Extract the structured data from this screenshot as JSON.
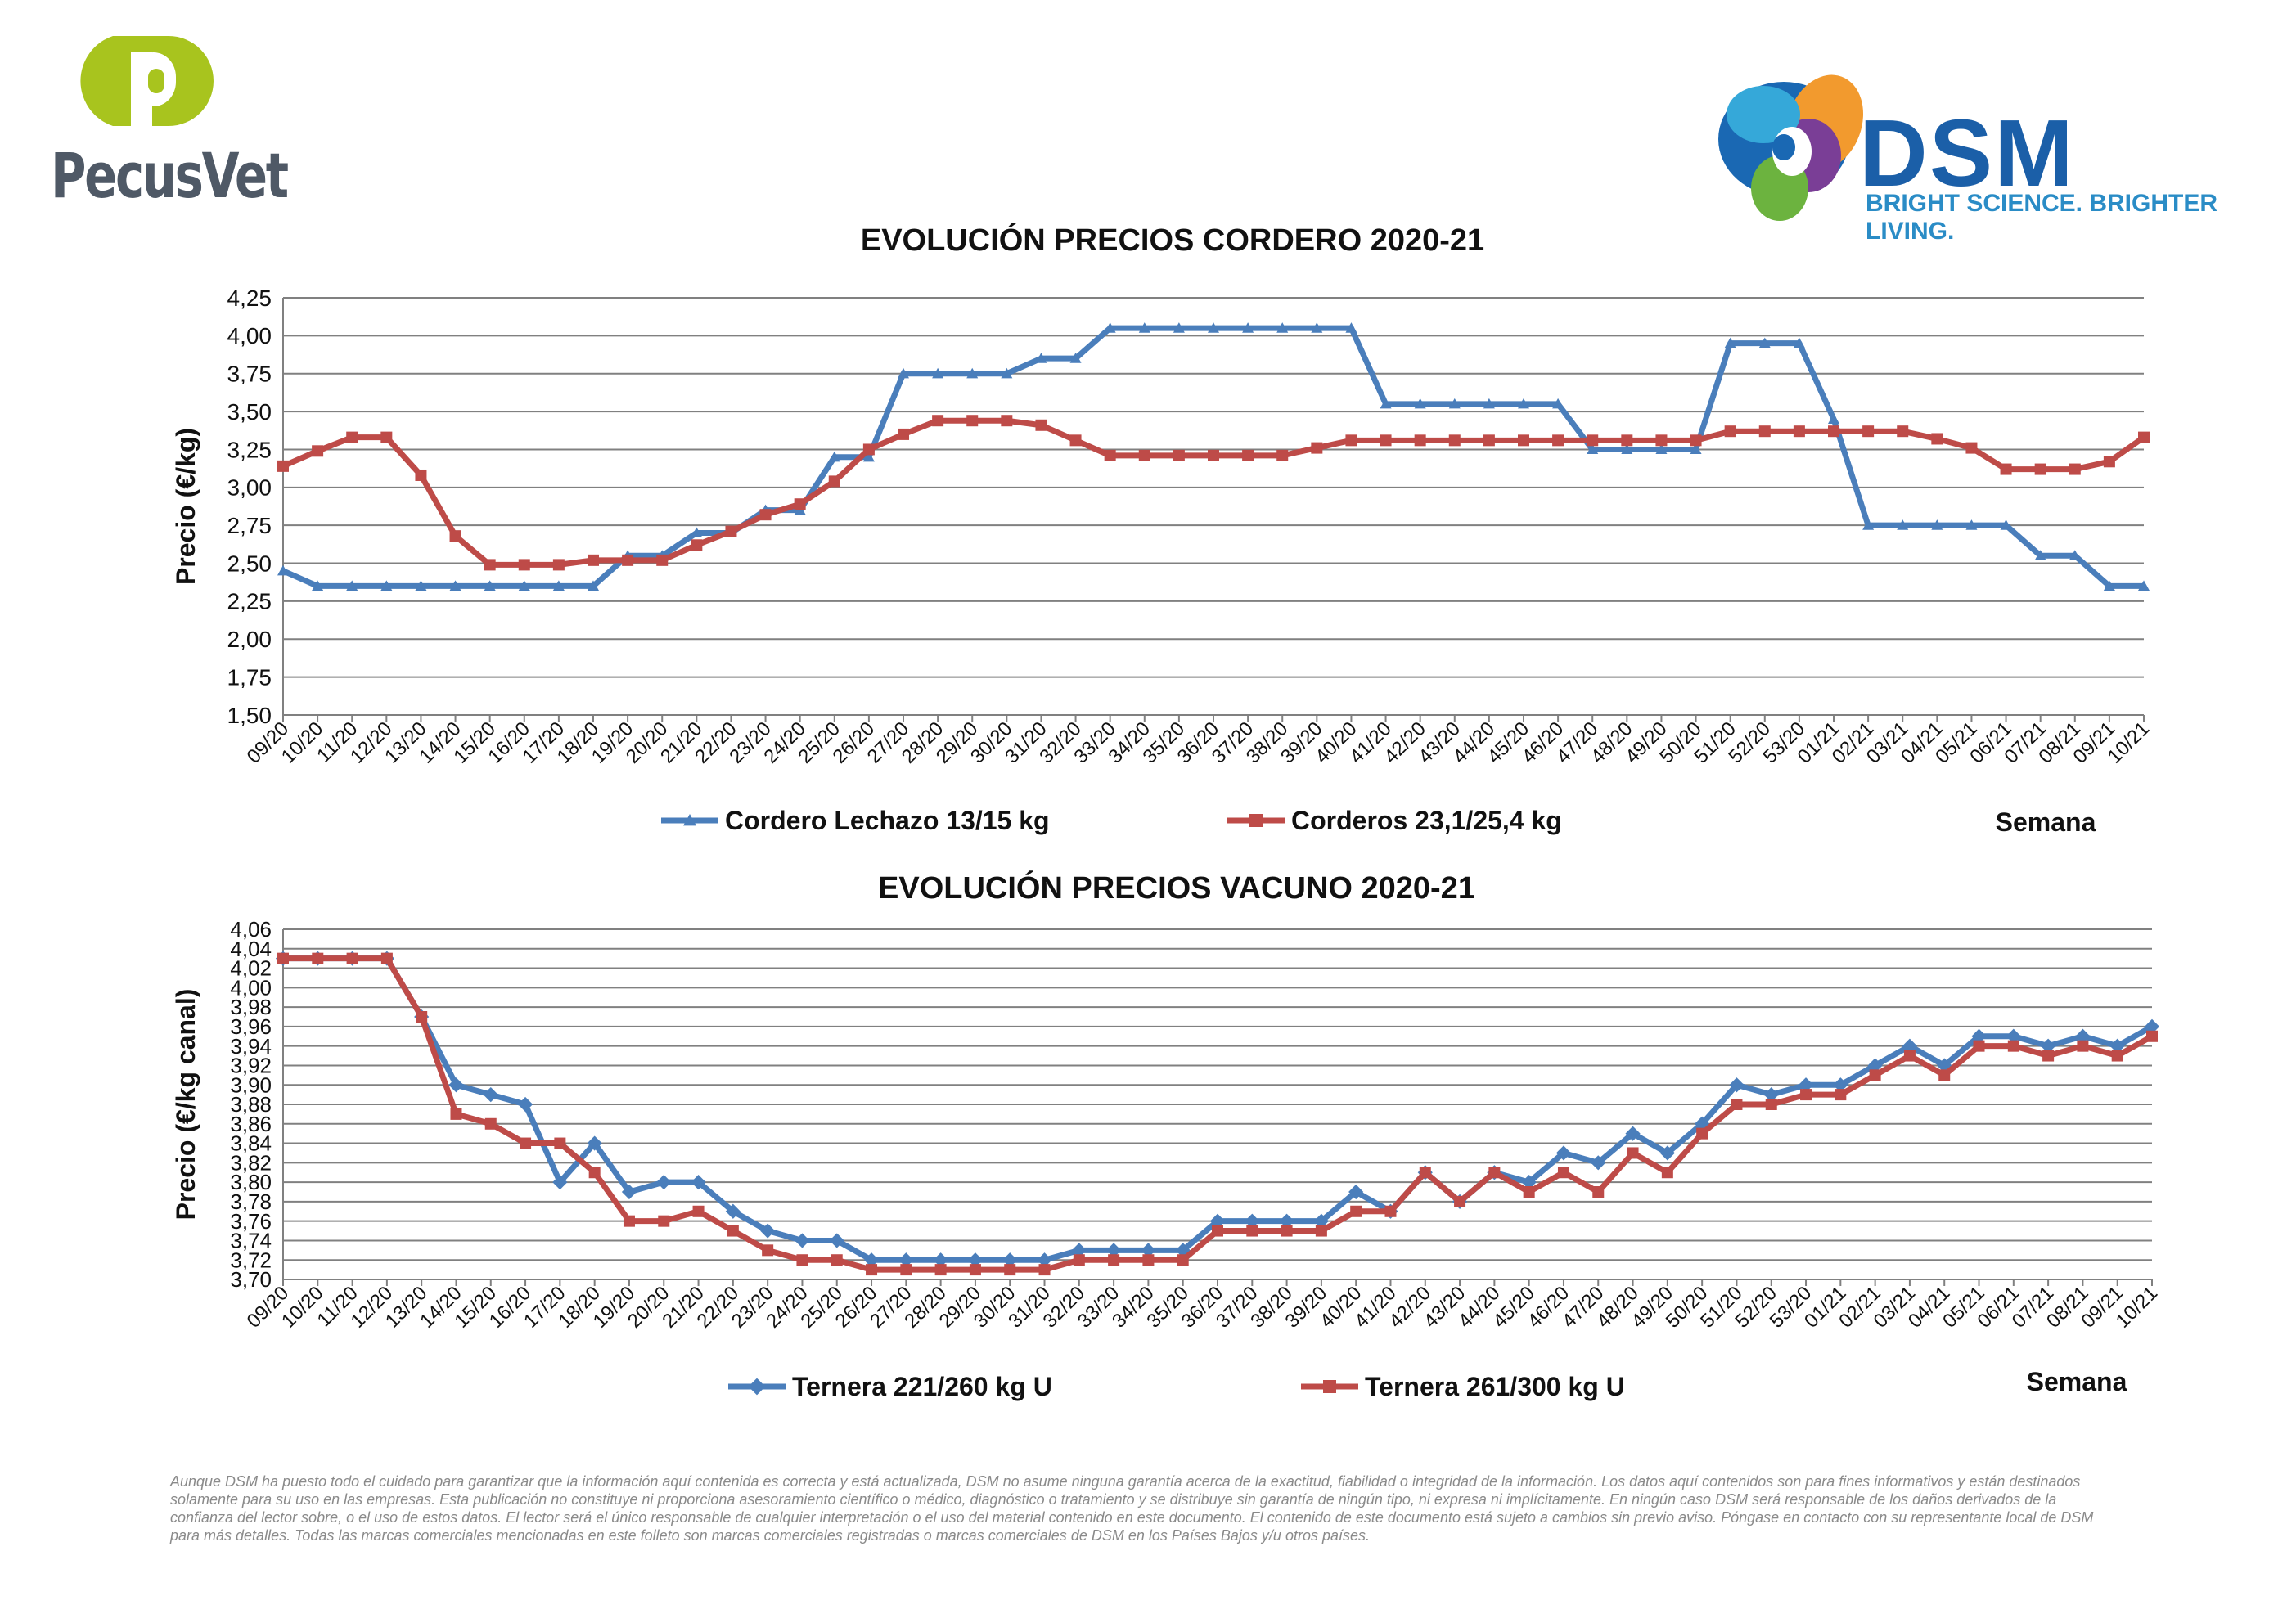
{
  "brand_left": {
    "name": "PecusVet",
    "logo_icon": "pecusvet-p-icon",
    "colors": {
      "green": "#a8c41e",
      "gray": "#4f5966"
    }
  },
  "brand_right": {
    "name": "DSM",
    "tagline": "BRIGHT SCIENCE. BRIGHTER LIVING.",
    "logo_icon": "dsm-swirl-icon",
    "colors": {
      "blue": "#1b5fa8",
      "light_blue": "#2a8cc6"
    }
  },
  "disclaimer": "Aunque DSM ha puesto todo el cuidado para garantizar que la información aquí contenida es correcta y está actualizada, DSM no asume ninguna garantía acerca de la exactitud, fiabilidad o integridad de la información. Los datos aquí contenidos son para fines informativos y están destinados solamente para su uso en las empresas. Esta publicación no constituye ni proporciona asesoramiento científico o médico, diagnóstico o tratamiento y se distribuye sin garantía de ningún tipo, ni expresa ni implícitamente. En ningún caso DSM será responsable de los daños derivados de la confianza del lector sobre, o el uso de estos datos. El lector será el único responsable de cualquier interpretación o el uso del material contenido en este documento. El contenido de este documento está sujeto a cambios sin previo aviso. Póngase en contacto con su representante local de DSM para más detalles. Todas las marcas comerciales mencionadas en este folleto son marcas comerciales registradas o marcas comerciales de DSM en los Países Bajos y/u otros países.",
  "chart_data": [
    {
      "type": "line",
      "title": "EVOLUCIÓN PRECIOS CORDERO 2020-21",
      "xlabel": "Semana",
      "ylabel": "Precio (€/kg)",
      "ylim": [
        1.5,
        4.25
      ],
      "yticks": [
        "1,50",
        "1,75",
        "2,00",
        "2,25",
        "2,50",
        "2,75",
        "3,00",
        "3,25",
        "3,50",
        "3,75",
        "4,00",
        "4,25"
      ],
      "grid": true,
      "legend_position": "bottom",
      "categories": [
        "09/20",
        "10/20",
        "11/20",
        "12/20",
        "13/20",
        "14/20",
        "15/20",
        "16/20",
        "17/20",
        "18/20",
        "19/20",
        "20/20",
        "21/20",
        "22/20",
        "23/20",
        "24/20",
        "25/20",
        "26/20",
        "27/20",
        "28/20",
        "29/20",
        "30/20",
        "31/20",
        "32/20",
        "33/20",
        "34/20",
        "35/20",
        "36/20",
        "37/20",
        "38/20",
        "39/20",
        "40/20",
        "41/20",
        "42/20",
        "43/20",
        "44/20",
        "45/20",
        "46/20",
        "47/20",
        "48/20",
        "49/20",
        "50/20",
        "51/20",
        "52/20",
        "53/20",
        "01/21",
        "02/21",
        "03/21",
        "04/21",
        "05/21",
        "06/21",
        "07/21",
        "08/21",
        "09/21",
        "10/21"
      ],
      "series": [
        {
          "name": "Cordero Lechazo 13/15 kg",
          "color": "#4a7ebb",
          "marker": "triangle",
          "values": [
            2.45,
            2.35,
            2.35,
            2.35,
            2.35,
            2.35,
            2.35,
            2.35,
            2.35,
            2.35,
            2.55,
            2.55,
            2.7,
            2.7,
            2.85,
            2.85,
            3.2,
            3.2,
            3.75,
            3.75,
            3.75,
            3.75,
            3.85,
            3.85,
            4.05,
            4.05,
            4.05,
            4.05,
            4.05,
            4.05,
            4.05,
            4.05,
            3.55,
            3.55,
            3.55,
            3.55,
            3.55,
            3.55,
            3.25,
            3.25,
            3.25,
            3.25,
            3.95,
            3.95,
            3.95,
            3.45,
            2.75,
            2.75,
            2.75,
            2.75,
            2.75,
            2.55,
            2.55,
            2.35,
            2.35
          ]
        },
        {
          "name": "Corderos 23,1/25,4 kg",
          "color": "#be4b48",
          "marker": "square",
          "values": [
            3.14,
            3.24,
            3.33,
            3.33,
            3.08,
            2.68,
            2.49,
            2.49,
            2.49,
            2.52,
            2.52,
            2.52,
            2.62,
            2.71,
            2.82,
            2.89,
            3.04,
            3.25,
            3.35,
            3.44,
            3.44,
            3.44,
            3.41,
            3.31,
            3.21,
            3.21,
            3.21,
            3.21,
            3.21,
            3.21,
            3.26,
            3.31,
            3.31,
            3.31,
            3.31,
            3.31,
            3.31,
            3.31,
            3.31,
            3.31,
            3.31,
            3.31,
            3.37,
            3.37,
            3.37,
            3.37,
            3.37,
            3.37,
            3.32,
            3.26,
            3.12,
            3.12,
            3.12,
            3.17,
            3.33
          ]
        }
      ]
    },
    {
      "type": "line",
      "title": "EVOLUCIÓN PRECIOS VACUNO 2020-21",
      "xlabel": "Semana",
      "ylabel": "Precio (€/kg canal)",
      "ylim": [
        3.7,
        4.06
      ],
      "yticks": [
        "3,70",
        "3,72",
        "3,74",
        "3,76",
        "3,78",
        "3,80",
        "3,82",
        "3,84",
        "3,86",
        "3,88",
        "3,90",
        "3,92",
        "3,94",
        "3,96",
        "3,98",
        "4,00",
        "4,02",
        "4,04",
        "4,06"
      ],
      "grid": true,
      "legend_position": "bottom",
      "categories": [
        "09/20",
        "10/20",
        "11/20",
        "12/20",
        "13/20",
        "14/20",
        "15/20",
        "16/20",
        "17/20",
        "18/20",
        "19/20",
        "20/20",
        "21/20",
        "22/20",
        "23/20",
        "24/20",
        "25/20",
        "26/20",
        "27/20",
        "28/20",
        "29/20",
        "30/20",
        "31/20",
        "32/20",
        "33/20",
        "34/20",
        "35/20",
        "36/20",
        "37/20",
        "38/20",
        "39/20",
        "40/20",
        "41/20",
        "42/20",
        "43/20",
        "44/20",
        "45/20",
        "46/20",
        "47/20",
        "48/20",
        "49/20",
        "50/20",
        "51/20",
        "52/20",
        "53/20",
        "01/21",
        "02/21",
        "03/21",
        "04/21",
        "05/21",
        "06/21",
        "07/21",
        "08/21",
        "09/21",
        "10/21"
      ],
      "series": [
        {
          "name": "Ternera 221/260 kg U",
          "color": "#4a7ebb",
          "marker": "diamond",
          "values": [
            4.03,
            4.03,
            4.03,
            4.03,
            3.97,
            3.9,
            3.89,
            3.88,
            3.8,
            3.84,
            3.79,
            3.8,
            3.8,
            3.77,
            3.75,
            3.74,
            3.74,
            3.72,
            3.72,
            3.72,
            3.72,
            3.72,
            3.72,
            3.73,
            3.73,
            3.73,
            3.73,
            3.76,
            3.76,
            3.76,
            3.76,
            3.79,
            3.77,
            3.81,
            3.78,
            3.81,
            3.8,
            3.83,
            3.82,
            3.85,
            3.83,
            3.86,
            3.9,
            3.89,
            3.9,
            3.9,
            3.92,
            3.94,
            3.92,
            3.95,
            3.95,
            3.94,
            3.95,
            3.94,
            3.96
          ]
        },
        {
          "name": "Ternera 261/300 kg U",
          "color": "#be4b48",
          "marker": "square",
          "values": [
            4.03,
            4.03,
            4.03,
            4.03,
            3.97,
            3.87,
            3.86,
            3.84,
            3.84,
            3.81,
            3.76,
            3.76,
            3.77,
            3.75,
            3.73,
            3.72,
            3.72,
            3.71,
            3.71,
            3.71,
            3.71,
            3.71,
            3.71,
            3.72,
            3.72,
            3.72,
            3.72,
            3.75,
            3.75,
            3.75,
            3.75,
            3.77,
            3.77,
            3.81,
            3.78,
            3.81,
            3.79,
            3.81,
            3.79,
            3.83,
            3.81,
            3.85,
            3.88,
            3.88,
            3.89,
            3.89,
            3.91,
            3.93,
            3.91,
            3.94,
            3.94,
            3.93,
            3.94,
            3.93,
            3.95
          ]
        }
      ]
    }
  ]
}
